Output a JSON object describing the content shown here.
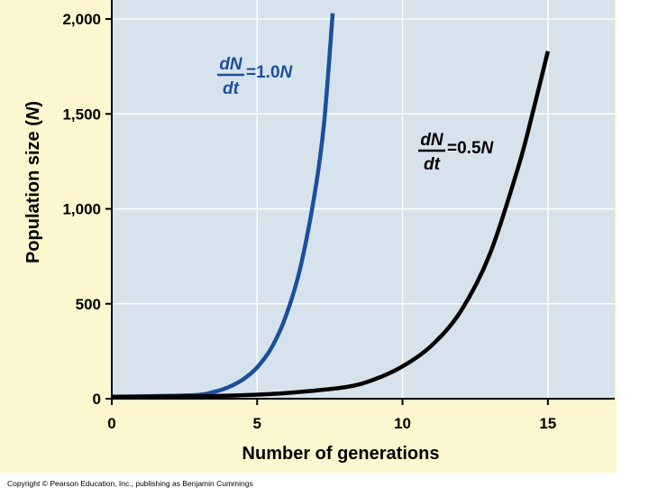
{
  "chart_data": {
    "type": "line",
    "title": "",
    "xlabel": "Number of generations",
    "ylabel_main": "Population size (",
    "ylabel_var": "N",
    "ylabel_close": ")",
    "xlim": [
      0,
      17.3
    ],
    "ylim": [
      0,
      2100
    ],
    "x_ticks": [
      0,
      5,
      10,
      15
    ],
    "y_ticks": [
      0,
      500,
      1000,
      1500,
      2000
    ],
    "x_tick_labels": [
      "0",
      "5",
      "10",
      "15"
    ],
    "y_tick_labels": [
      "0",
      "500",
      "1,000",
      "1,500",
      "2,000"
    ],
    "grid": true,
    "series": [
      {
        "name": "dN/dt = 1.0N",
        "color": "#1b4f9c",
        "x": [
          0,
          1,
          2,
          3,
          3.5,
          4,
          4.5,
          5,
          5.5,
          6,
          6.5,
          7,
          7.3,
          7.6
        ],
        "values": [
          10,
          12,
          15,
          20,
          35,
          60,
          100,
          165,
          270,
          440,
          700,
          1100,
          1450,
          2030
        ]
      },
      {
        "name": "dN/dt = 0.5N",
        "color": "#000000",
        "x": [
          0,
          2,
          4,
          6,
          8,
          9,
          10,
          11,
          12,
          13,
          14,
          14.5,
          15
        ],
        "values": [
          10,
          12,
          16,
          30,
          60,
          100,
          170,
          280,
          460,
          760,
          1230,
          1520,
          1830
        ]
      }
    ],
    "annotations": [
      {
        "num": "dN",
        "den": "dt",
        "eq": "=1.0",
        "var": "N",
        "series": 0
      },
      {
        "num": "dN",
        "den": "dt",
        "eq": "=0.5",
        "var": "N",
        "series": 1
      }
    ]
  },
  "copyright": "Copyright © Pearson Education, Inc., publishing as Benjamin Cummings",
  "colors": {
    "plot_bg": "#d7e3ec",
    "frame_bg": "#fdf7cf",
    "grid": "#ffffff"
  }
}
